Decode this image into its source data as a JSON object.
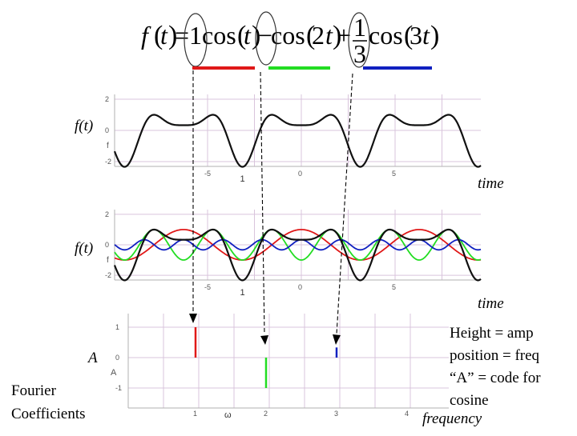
{
  "formula": {
    "f": "f",
    "t_arg": "t",
    "eq": "=",
    "c1": "1",
    "cos1": "cos",
    "t1": "t",
    "minus": "−",
    "cos2": "cos",
    "c2": "2",
    "t2": "t",
    "plus": "+",
    "frac_num": "1",
    "frac_den": "3",
    "cos3": "cos",
    "c3": "3",
    "t3": "t"
  },
  "colors": {
    "term1": "#e01818",
    "term2": "#22dd22",
    "term3": "#1020c0",
    "sum": "#111111",
    "grid": "#d9c4dc",
    "axis": "#b0b0b0"
  },
  "panel1": {
    "ylabel": "f(t)",
    "xlabel": "time",
    "yticks": [
      "2",
      "0",
      "-2"
    ],
    "yletter": "f",
    "xticks": [
      "-5",
      "0",
      "5"
    ],
    "pi_mark": "1"
  },
  "panel2": {
    "ylabel": "f(t)",
    "xlabel": "time",
    "yticks": [
      "2",
      "0",
      "-2"
    ],
    "yletter": "f",
    "xticks": [
      "-5",
      "0",
      "5"
    ],
    "pi_mark": "1"
  },
  "panel3": {
    "ylabel": "A",
    "xlabel": "frequency",
    "yticks": [
      "1",
      "0",
      "-1"
    ],
    "yletter": "A",
    "xticks": [
      "1",
      "2",
      "3",
      "4"
    ],
    "omega": "ω"
  },
  "side_label": {
    "line1": "Fourier",
    "line2": "Coefficients"
  },
  "notes": [
    "Height = amp",
    "position = freq",
    "“A” = code for",
    "cosine"
  ],
  "chart_data": {
    "type": "bar",
    "categories": [
      "1",
      "2",
      "3"
    ],
    "values": [
      1,
      -1,
      0.3333
    ],
    "xlabel": "frequency",
    "ylabel": "A",
    "ylim": [
      -1.3,
      1.3
    ]
  }
}
